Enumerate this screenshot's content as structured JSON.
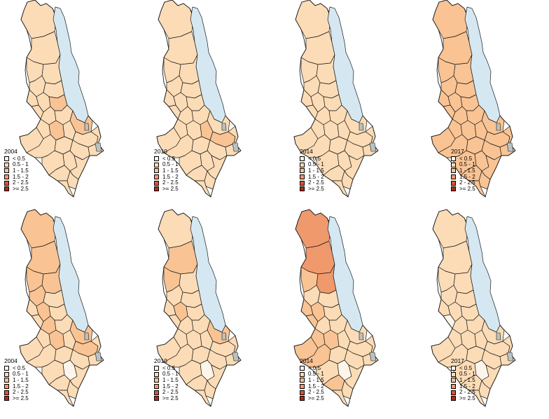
{
  "colors": {
    "lake": "#d5e8f2",
    "water_grey": "#b9c3c2",
    "border": "#1a1a1a"
  },
  "legend_bins": [
    {
      "label": "< 0.5",
      "color": "#fdf5ea"
    },
    {
      "label": "0.5 - 1",
      "color": "#fcdcb6"
    },
    {
      "label": "1 - 1.5",
      "color": "#f9c393"
    },
    {
      "label": "1.5 - 2",
      "color": "#f0996c"
    },
    {
      "label": "2 - 2.5",
      "color": "#d7543a"
    },
    {
      "label": ">= 2.5",
      "color": "#b42712"
    }
  ],
  "panels": [
    {
      "year": "2004",
      "district_classes": [
        1,
        1,
        1,
        1,
        1,
        1,
        1,
        1,
        2,
        1,
        1,
        1,
        2,
        1,
        2,
        1,
        1,
        1,
        1,
        1,
        1,
        1,
        1,
        1,
        1,
        1,
        1,
        1
      ]
    },
    {
      "year": "2010",
      "district_classes": [
        1,
        1,
        1,
        1,
        1,
        1,
        1,
        1,
        1,
        1,
        1,
        1,
        1,
        1,
        1,
        2,
        2,
        1,
        1,
        1,
        1,
        1,
        1,
        1,
        1,
        1,
        1,
        1
      ]
    },
    {
      "year": "2014",
      "district_classes": [
        1,
        1,
        1,
        1,
        1,
        1,
        1,
        1,
        1,
        1,
        1,
        1,
        1,
        1,
        1,
        1,
        1,
        1,
        1,
        1,
        1,
        1,
        1,
        1,
        1,
        1,
        1,
        1
      ]
    },
    {
      "year": "2017",
      "district_classes": [
        2,
        2,
        2,
        2,
        2,
        2,
        2,
        2,
        2,
        2,
        2,
        2,
        2,
        2,
        2,
        2,
        2,
        2,
        2,
        2,
        2,
        2,
        2,
        2,
        2,
        2,
        2,
        2
      ]
    },
    {
      "year": "2004",
      "district_classes": [
        2,
        2,
        2,
        2,
        2,
        1,
        1,
        2,
        1,
        1,
        2,
        1,
        2,
        1,
        2,
        1,
        2,
        1,
        1,
        1,
        1,
        1,
        0,
        1,
        1,
        1,
        1,
        1
      ]
    },
    {
      "year": "2010",
      "district_classes": [
        1,
        2,
        2,
        1,
        1,
        1,
        1,
        2,
        1,
        1,
        1,
        1,
        2,
        1,
        1,
        1,
        1,
        1,
        1,
        1,
        1,
        1,
        0,
        1,
        1,
        1,
        1,
        1
      ]
    },
    {
      "year": "2014",
      "district_classes": [
        3,
        3,
        2,
        3,
        1,
        1,
        2,
        2,
        1,
        2,
        1,
        1,
        1,
        2,
        2,
        1,
        1,
        2,
        2,
        1,
        1,
        1,
        0,
        1,
        2,
        1,
        1,
        1
      ]
    },
    {
      "year": "2017",
      "district_classes": [
        1,
        1,
        1,
        1,
        1,
        1,
        1,
        1,
        1,
        0,
        1,
        1,
        1,
        1,
        1,
        1,
        1,
        1,
        1,
        1,
        1,
        1,
        0,
        1,
        1,
        1,
        1,
        1
      ]
    }
  ]
}
